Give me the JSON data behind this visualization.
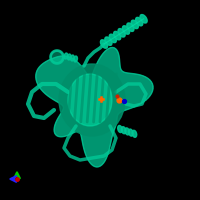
{
  "background_color": "#000000",
  "protein_color": "#00c896",
  "protein_color_dark": "#008f6a",
  "protein_color_light": "#00e6aa",
  "marker_orange": "#ff6600",
  "marker_blue": "#0000cc",
  "marker_red": "#cc2200",
  "axis_green": "#00cc00",
  "axis_blue": "#2222ff",
  "axis_red": "#cc0000",
  "figsize": [
    2.0,
    2.0
  ],
  "dpi": 100
}
